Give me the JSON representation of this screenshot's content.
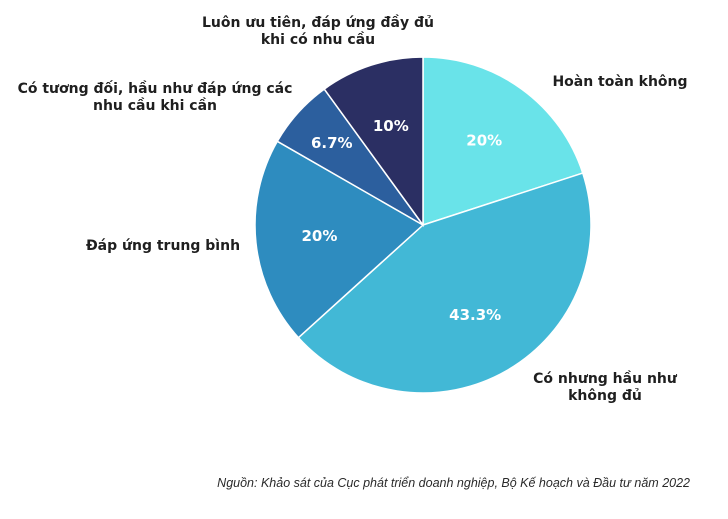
{
  "chart_data": {
    "type": "pie",
    "categories": [
      "Hoàn toàn không",
      "Có nhưng hầu như không đủ",
      "Đáp ứng trung bình",
      "Có tương đối, hầu như đáp ứng các nhu cầu khi cần",
      "Luôn ưu tiên, đáp ứng đầy đủ khi có nhu cầu"
    ],
    "values": [
      20,
      43.3,
      20,
      6.7,
      10
    ],
    "value_labels": [
      "20%",
      "43.3%",
      "20%",
      "6.7%",
      "10%"
    ],
    "label_lines": [
      [
        "Hoàn toàn không"
      ],
      [
        "Có nhưng hầu như",
        "không đủ"
      ],
      [
        "Đáp ứng trung bình"
      ],
      [
        "Có tương đối, hầu như đáp ứng các",
        "nhu cầu khi cần"
      ],
      [
        "Luôn ưu tiên, đáp ứng đầy đủ",
        "khi có nhu cầu"
      ]
    ],
    "colors": [
      "#69e3e9",
      "#42b8d6",
      "#2e8cbf",
      "#2c5f9e",
      "#2b2f63"
    ],
    "start": "top",
    "direction": "clockwise"
  },
  "source": "Nguồn: Khảo sát của Cục phát triển doanh nghiệp, Bộ Kế hoạch và Đầu tư năm 2022"
}
